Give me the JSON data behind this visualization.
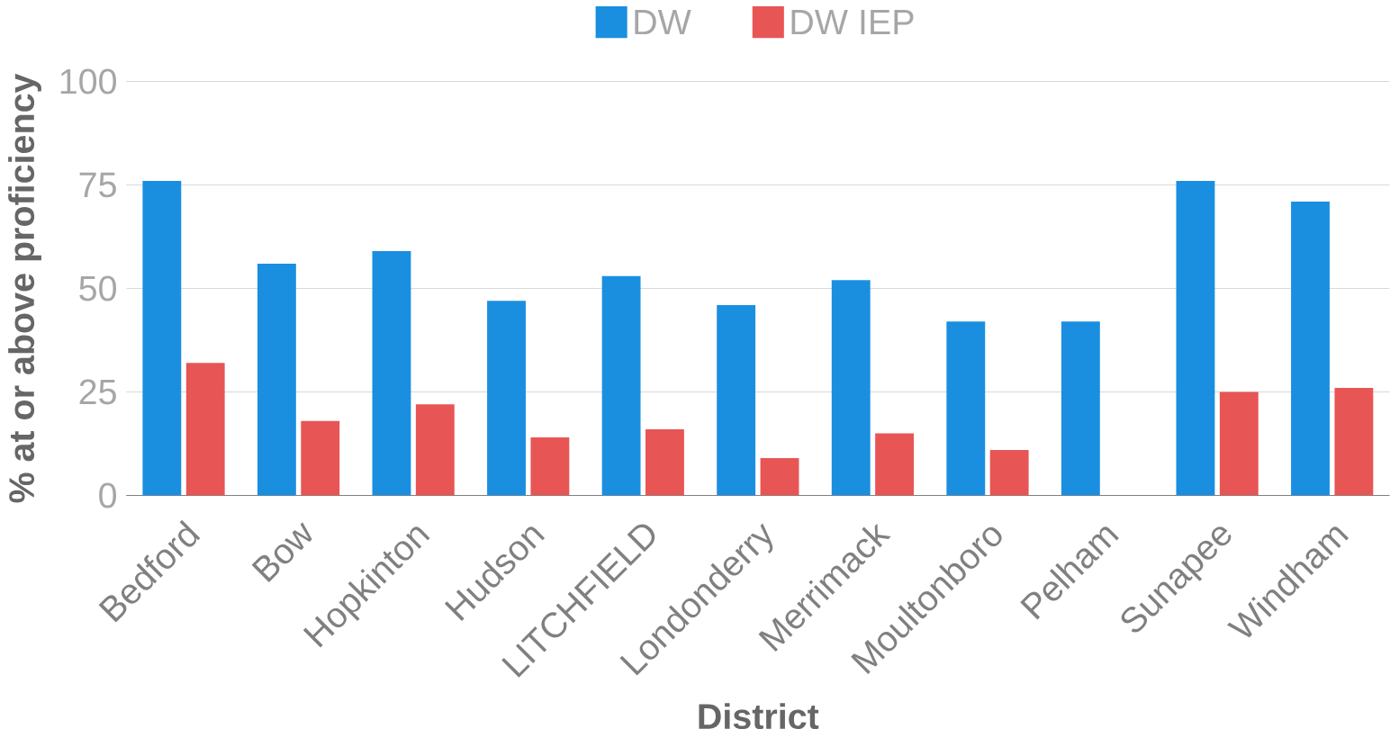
{
  "chart_data": {
    "type": "bar",
    "xlabel": "District",
    "ylabel": "% at or above proficiency",
    "categories": [
      "Bedford",
      "Bow",
      "Hopkinton",
      "Hudson",
      "LITCHFIELD",
      "Londonderry",
      "Merrimack",
      "Moultonboro",
      "Pelham",
      "Sunapee",
      "Windham"
    ],
    "series": [
      {
        "name": "DW",
        "color": "#1a8fe0",
        "values": [
          76,
          56,
          59,
          47,
          53,
          46,
          52,
          42,
          42,
          76,
          71
        ]
      },
      {
        "name": "DW IEP",
        "color": "#e85555",
        "values": [
          32,
          18,
          22,
          14,
          16,
          9,
          15,
          11,
          null,
          25,
          26
        ]
      }
    ],
    "ylim": [
      0,
      100
    ],
    "yticks": [
      0,
      25,
      50,
      75,
      100
    ],
    "grid": "y",
    "legend": "top"
  }
}
